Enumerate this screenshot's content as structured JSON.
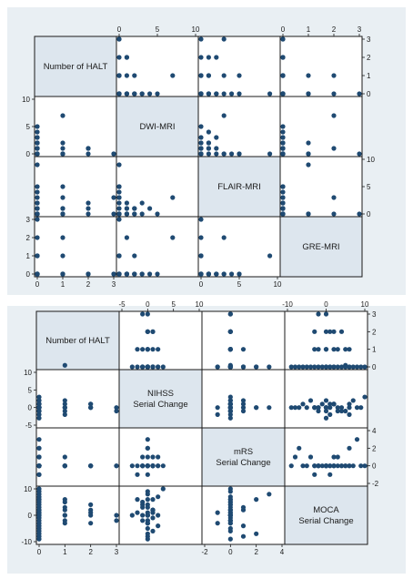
{
  "chart_data": [
    {
      "type": "scatter",
      "matrix": true,
      "variables": [
        {
          "name": "Number of HALT",
          "range": [
            0,
            3
          ],
          "ticks": [
            0,
            1,
            2,
            3
          ]
        },
        {
          "name": "DWI-MRI",
          "range": [
            0,
            10
          ],
          "ticks": [
            0,
            5,
            10
          ]
        },
        {
          "name": "FLAIR-MRI",
          "range": [
            0,
            10
          ],
          "ticks": [
            0,
            5,
            10
          ]
        },
        {
          "name": "GRE-MRI",
          "range": [
            0,
            3
          ],
          "ticks": [
            0,
            1,
            2,
            3
          ]
        }
      ],
      "points": [
        [
          0,
          0,
          0,
          0
        ],
        [
          0,
          1,
          0,
          0
        ],
        [
          0,
          2,
          1,
          0
        ],
        [
          0,
          3,
          2,
          0
        ],
        [
          0,
          5,
          0,
          0
        ],
        [
          0,
          0,
          0,
          1
        ],
        [
          0,
          1,
          0,
          2
        ],
        [
          0,
          0,
          0,
          3
        ],
        [
          0,
          4,
          1,
          0
        ],
        [
          0,
          0,
          5,
          0
        ],
        [
          0,
          0,
          9,
          1
        ],
        [
          0,
          1,
          2,
          0
        ],
        [
          0,
          0,
          3,
          0
        ],
        [
          0,
          0,
          4,
          0
        ],
        [
          0,
          2,
          0,
          1
        ],
        [
          1,
          0,
          0,
          0
        ],
        [
          1,
          2,
          1,
          0
        ],
        [
          1,
          7,
          3,
          2
        ],
        [
          1,
          1,
          0,
          0
        ],
        [
          1,
          0,
          5,
          0
        ],
        [
          1,
          0,
          0,
          1
        ],
        [
          1,
          0,
          1,
          0
        ],
        [
          2,
          1,
          0,
          0
        ],
        [
          2,
          0,
          2,
          0
        ],
        [
          2,
          1,
          1,
          0
        ],
        [
          3,
          0,
          3,
          0
        ],
        [
          3,
          0,
          0,
          0
        ],
        [
          0,
          1,
          1,
          0
        ],
        [
          0,
          3,
          0,
          0
        ],
        [
          0,
          2,
          0,
          0
        ]
      ]
    },
    {
      "type": "scatter",
      "matrix": true,
      "variables": [
        {
          "name": "Number of HALT",
          "range": [
            0,
            3
          ],
          "ticks": [
            0,
            1,
            2,
            3
          ]
        },
        {
          "name": "NIHSS\nSerial Change",
          "range": [
            -5,
            10
          ],
          "ticks": [
            -5,
            0,
            5,
            10
          ]
        },
        {
          "name": "mRS\nSerial Change",
          "range": [
            -2,
            4
          ],
          "ticks": [
            -2,
            0,
            2,
            4
          ]
        },
        {
          "name": "MOCA\nSerial Change",
          "range": [
            -10,
            10
          ],
          "ticks": [
            -10,
            0,
            10
          ]
        }
      ],
      "points": [
        [
          0,
          0,
          0,
          0
        ],
        [
          0,
          1,
          0,
          2
        ],
        [
          0,
          0,
          0,
          -2
        ],
        [
          0,
          -1,
          0,
          4
        ],
        [
          0,
          2,
          1,
          -4
        ],
        [
          0,
          0,
          2,
          6
        ],
        [
          0,
          0,
          3,
          8
        ],
        [
          0,
          1,
          0,
          -6
        ],
        [
          0,
          3,
          0,
          10
        ],
        [
          0,
          -2,
          -1,
          1
        ],
        [
          0,
          0,
          1,
          -8
        ],
        [
          0,
          0,
          0,
          3
        ],
        [
          0,
          1,
          0,
          -1
        ],
        [
          0,
          -1,
          0,
          5
        ],
        [
          0,
          0,
          -1,
          -3
        ],
        [
          0,
          2,
          0,
          7
        ],
        [
          0,
          0,
          0,
          -9
        ],
        [
          0,
          1,
          1,
          2
        ],
        [
          0,
          -1,
          0,
          0
        ],
        [
          0,
          0,
          0,
          9
        ],
        [
          0,
          0,
          0,
          -5
        ],
        [
          0,
          1,
          0,
          6
        ],
        [
          0,
          0,
          0,
          1
        ],
        [
          0,
          0,
          2,
          -7
        ],
        [
          0,
          -3,
          0,
          0
        ],
        [
          1,
          2,
          0,
          0
        ],
        [
          1,
          -1,
          1,
          3
        ],
        [
          1,
          0,
          0,
          -2
        ],
        [
          1,
          12,
          0,
          5
        ],
        [
          1,
          0,
          0,
          -3
        ],
        [
          1,
          1,
          0,
          2
        ],
        [
          1,
          0,
          0,
          0
        ],
        [
          1,
          -2,
          0,
          6
        ],
        [
          2,
          0,
          0,
          0
        ],
        [
          2,
          1,
          0,
          2
        ],
        [
          2,
          0,
          0,
          -3
        ],
        [
          2,
          0,
          0,
          4
        ],
        [
          2,
          1,
          0,
          1
        ],
        [
          3,
          0,
          0,
          0
        ],
        [
          3,
          -1,
          0,
          -2
        ]
      ]
    }
  ]
}
